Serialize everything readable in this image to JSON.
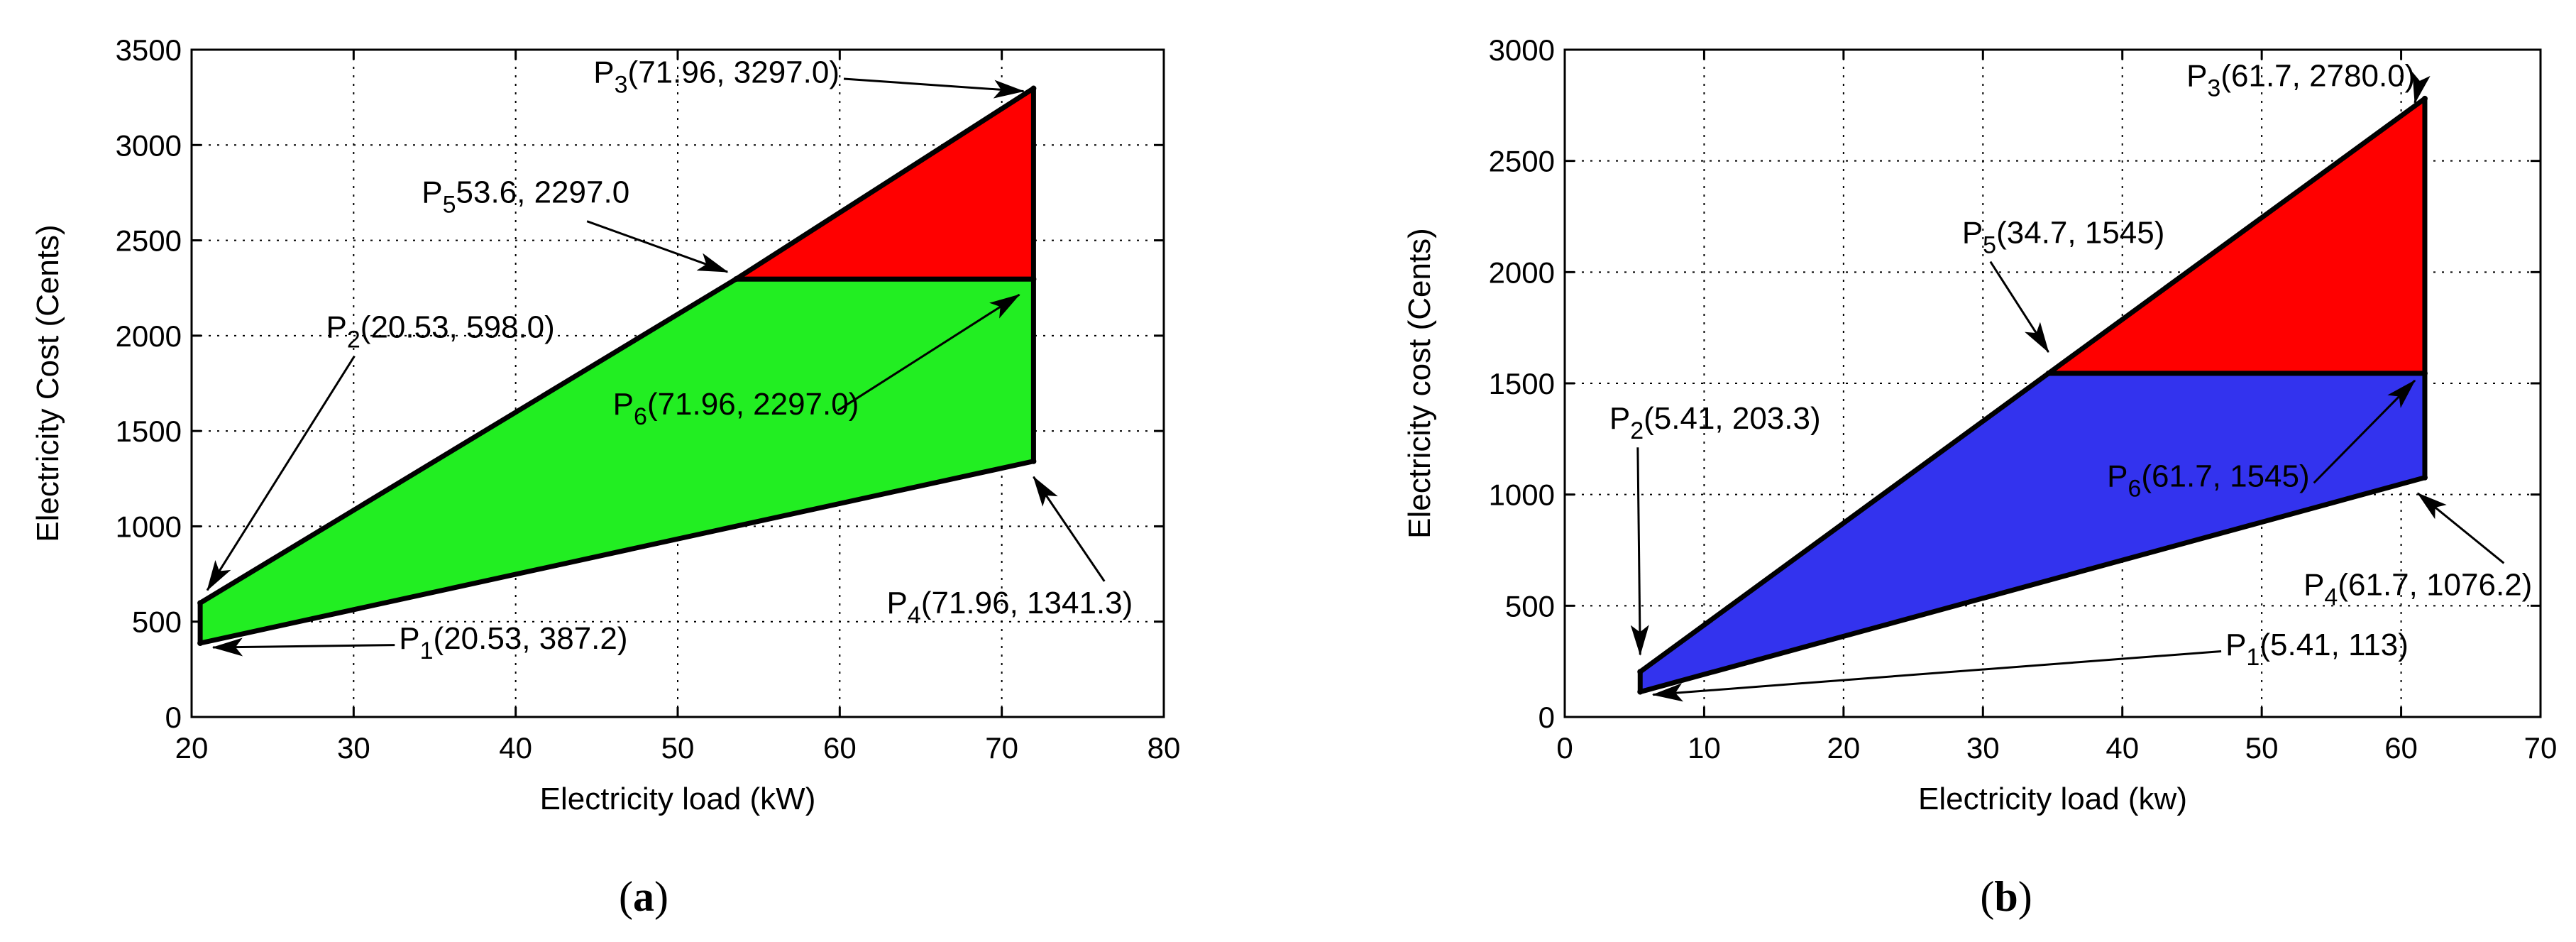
{
  "chart_data": [
    {
      "type": "area",
      "caption": "a",
      "xlabel": "Electricity load (kW)",
      "ylabel": "Electricity Cost (Cents)",
      "xlim": [
        20,
        80
      ],
      "ylim": [
        0,
        3500
      ],
      "xticks": [
        20,
        30,
        40,
        50,
        60,
        70,
        80
      ],
      "yticks": [
        0,
        500,
        1000,
        1500,
        2000,
        2500,
        3000,
        3500
      ],
      "grid": true,
      "points": {
        "P1": [
          20.53,
          387.2
        ],
        "P2": [
          20.53,
          598.0
        ],
        "P3": [
          71.96,
          3297.0
        ],
        "P4": [
          71.96,
          1341.3
        ],
        "P5": [
          53.6,
          2297.0
        ],
        "P6": [
          71.96,
          2297.0
        ]
      },
      "regions": [
        {
          "color": "#22ee22",
          "vertices": [
            "P1",
            "P2",
            "P5",
            "P6",
            "P4"
          ]
        },
        {
          "color": "#ff0000",
          "vertices": [
            "P5",
            "P3",
            "P6"
          ]
        }
      ],
      "annotations": [
        {
          "point": "P1",
          "sub": "1",
          "text": "(20.53, 387.2)",
          "at": [
            32.8,
            357
          ]
        },
        {
          "point": "P2",
          "sub": "2",
          "text": "(20.53, 598.0)",
          "at": [
            28.3,
            1990
          ]
        },
        {
          "point": "P3",
          "sub": "3",
          "text": "(71.96, 3297.0)",
          "at": [
            44.8,
            3327
          ]
        },
        {
          "point": "P4",
          "sub": "4",
          "text": "(71.96, 1341.3)",
          "at": [
            62.9,
            544
          ]
        },
        {
          "point": "P5",
          "sub": "5",
          "text": "53.6, 2297.0",
          "at": [
            34.2,
            2697
          ]
        },
        {
          "point": "P6",
          "sub": "6",
          "text": "(71.96, 2297.0)",
          "at": [
            46.0,
            1587
          ]
        }
      ]
    },
    {
      "type": "area",
      "caption": "b",
      "xlabel": "Electricity load (kw)",
      "ylabel": "Electricity cost (Cents)",
      "xlim": [
        0,
        70
      ],
      "ylim": [
        0,
        3000
      ],
      "xticks": [
        0,
        10,
        20,
        30,
        40,
        50,
        60,
        70
      ],
      "yticks": [
        0,
        500,
        1000,
        1500,
        2000,
        2500,
        3000
      ],
      "grid": true,
      "points": {
        "P1": [
          5.41,
          113
        ],
        "P2": [
          5.41,
          203.3
        ],
        "P3": [
          61.7,
          2780.0
        ],
        "P4": [
          61.7,
          1076.2
        ],
        "P5": [
          34.7,
          1545
        ],
        "P6": [
          61.7,
          1545
        ]
      },
      "regions": [
        {
          "color": "#3333ee",
          "vertices": [
            "P1",
            "P2",
            "P5",
            "P6",
            "P4"
          ]
        },
        {
          "color": "#ff0000",
          "vertices": [
            "P5",
            "P3",
            "P6"
          ]
        }
      ],
      "annotations": [
        {
          "point": "P1",
          "sub": "1",
          "text": "(5.41, 113)",
          "at": [
            47.4,
            278
          ]
        },
        {
          "point": "P2",
          "sub": "2",
          "text": "(5.41, 203.3)",
          "at": [
            3.2,
            1295
          ]
        },
        {
          "point": "P3",
          "sub": "3",
          "text": "(61.7, 2780.0)",
          "at": [
            44.6,
            2835
          ]
        },
        {
          "point": "P4",
          "sub": "4",
          "text": "(61.7, 1076.2)",
          "at": [
            53.0,
            548
          ]
        },
        {
          "point": "P5",
          "sub": "5",
          "text": "(34.7, 1545)",
          "at": [
            28.5,
            2130
          ]
        },
        {
          "point": "P6",
          "sub": "6",
          "text": "(61.7, 1545)",
          "at": [
            38.9,
            1035
          ]
        }
      ]
    }
  ]
}
